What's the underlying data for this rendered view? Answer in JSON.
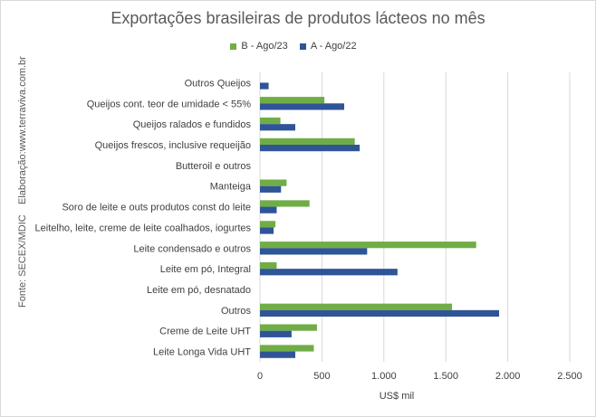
{
  "chart_data": {
    "type": "bar",
    "orientation": "horizontal",
    "title": "Exportações brasileiras de produtos lácteos no mês",
    "xlabel": "US$ mil",
    "ylabel": "",
    "xlim": [
      0,
      2500
    ],
    "xticks": [
      0,
      500,
      1000,
      1500,
      2000,
      2500
    ],
    "xtick_labels": [
      "0",
      "500",
      "1.000",
      "1.500",
      "2.000",
      "2.500"
    ],
    "grid": true,
    "legend_position": "top",
    "categories": [
      "Outros Queijos",
      "Queijos cont. teor de umidade < 55%",
      "Queijos ralados e fundidos",
      "Queijos frescos, inclusive requeijão",
      "Butteroil e outros",
      "Manteiga",
      "Soro de leite e outs produtos const do leite",
      "Leitelho, leite, creme de leite coalhados, iogurtes",
      "Leite condensado e outros",
      "Leite em pó, Integral",
      "Leite em pó, desnatado",
      "Outros",
      "Creme de Leite UHT",
      "Leite Longa Vida UHT"
    ],
    "series": [
      {
        "name": "B - Ago/23",
        "color": "#70ad47",
        "values": [
          0,
          520,
          165,
          765,
          0,
          215,
          400,
          125,
          1745,
          135,
          0,
          1550,
          460,
          435
        ]
      },
      {
        "name": "A - Ago/22",
        "color": "#2f5597",
        "values": [
          70,
          680,
          285,
          805,
          0,
          170,
          135,
          110,
          865,
          1110,
          0,
          1930,
          255,
          285
        ]
      }
    ]
  },
  "side_notes": {
    "credit": "Elaboração:www.terraviva.com.br",
    "source": "Fonte: SECEX/MDIC"
  },
  "colors": {
    "grid": "#d9d9d9",
    "text": "#404040",
    "title": "#595959"
  }
}
